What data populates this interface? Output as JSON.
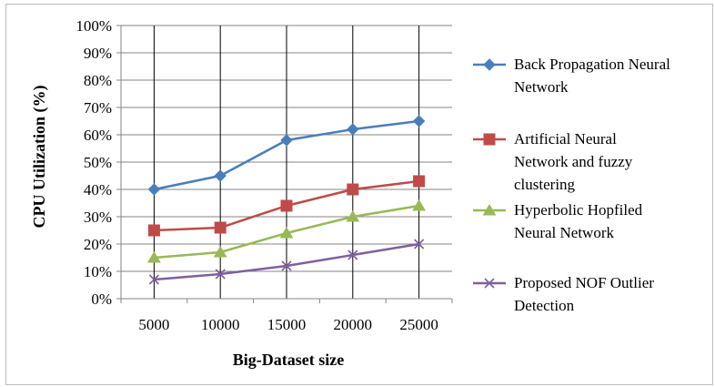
{
  "chart_data": {
    "type": "line",
    "xlabel": "Big-Dataset size",
    "ylabel": "CPU Utilization (%)",
    "categories": [
      "5000",
      "10000",
      "15000",
      "20000",
      "25000"
    ],
    "y_ticks": [
      "0%",
      "10%",
      "20%",
      "30%",
      "40%",
      "50%",
      "60%",
      "70%",
      "80%",
      "90%",
      "100%"
    ],
    "ylim": [
      0,
      100
    ],
    "grid": "horizontal and vertical",
    "legend_position": "right",
    "series": [
      {
        "name": "Back Propagation Neural Network",
        "legend_lines": [
          "Back Propagation Neural",
          "Network"
        ],
        "color": "#4a7ebb",
        "marker": "diamond",
        "values": [
          40,
          45,
          58,
          62,
          65
        ]
      },
      {
        "name": "Artificial Neural Network and fuzzy clustering",
        "legend_lines": [
          "Artificial Neural",
          "Network and fuzzy",
          "clustering"
        ],
        "color": "#be4b48",
        "marker": "square",
        "values": [
          25,
          26,
          34,
          40,
          43
        ]
      },
      {
        "name": "Hyperbolic Hopfiled Neural Network",
        "legend_lines": [
          "Hyperbolic Hopfiled",
          "Neural Network"
        ],
        "color": "#98b954",
        "marker": "triangle",
        "values": [
          15,
          17,
          24,
          30,
          34
        ]
      },
      {
        "name": "Proposed NOF Outlier Detection",
        "legend_lines": [
          "Proposed NOF Outlier",
          "Detection"
        ],
        "color": "#7d60a0",
        "marker": "x",
        "values": [
          7,
          9,
          12,
          16,
          20
        ]
      }
    ]
  }
}
